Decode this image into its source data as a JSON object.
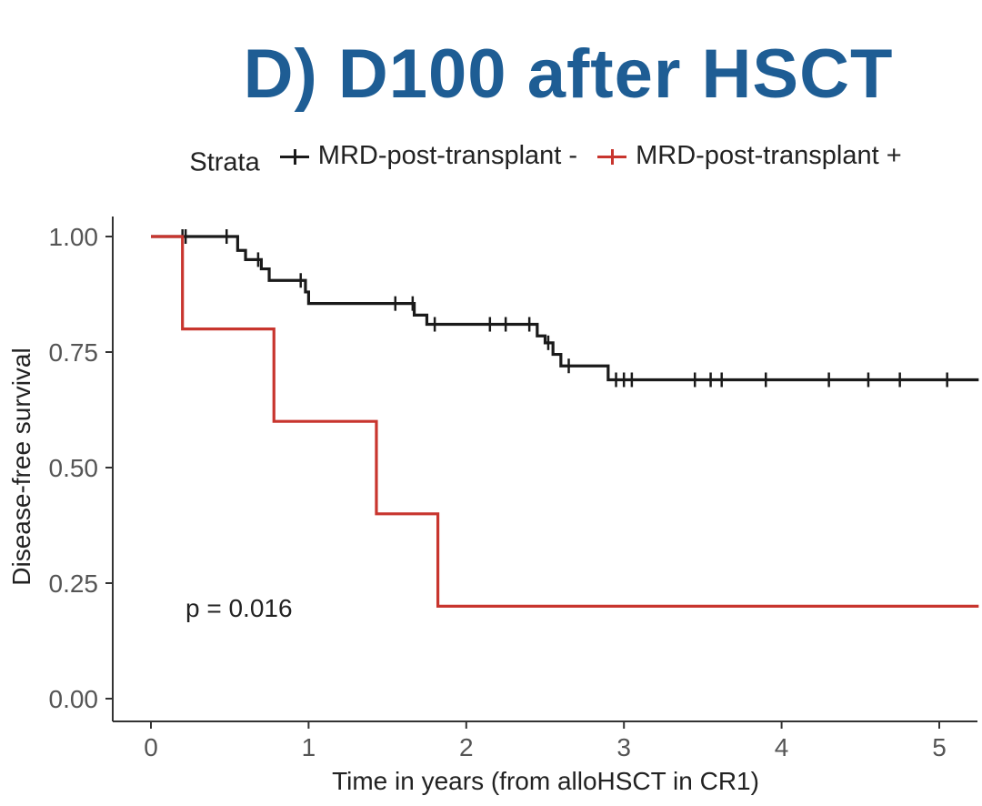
{
  "chart_data": {
    "type": "line",
    "subtype": "kaplan-meier",
    "title": "D) D100 after HSCT",
    "legend": {
      "title": "Strata",
      "placement": "top"
    },
    "xlabel": "Time in years (from alloHSCT in CR1)",
    "ylabel": "Disease-free survival",
    "xlim": [
      0,
      5.25
    ],
    "ylim": [
      0,
      1
    ],
    "xticks": [
      0,
      1,
      2,
      3,
      4,
      5
    ],
    "xtick_labels": [
      "0",
      "1",
      "2",
      "3",
      "4",
      "5"
    ],
    "yticks": [
      0,
      0.25,
      0.5,
      0.75,
      1
    ],
    "ytick_labels": [
      "0.00",
      "0.25",
      "0.50",
      "0.75",
      "1.00"
    ],
    "grid": false,
    "annotation": "p = 0.016",
    "series": [
      {
        "name": "MRD-post-transplant -",
        "color": "#1a1a1a",
        "steps": [
          [
            0,
            1.0
          ],
          [
            0.55,
            0.97
          ],
          [
            0.6,
            0.95
          ],
          [
            0.7,
            0.93
          ],
          [
            0.75,
            0.905
          ],
          [
            0.98,
            0.88
          ],
          [
            1.0,
            0.855
          ],
          [
            1.67,
            0.83
          ],
          [
            1.75,
            0.81
          ],
          [
            2.45,
            0.785
          ],
          [
            2.5,
            0.77
          ],
          [
            2.55,
            0.745
          ],
          [
            2.6,
            0.72
          ],
          [
            2.9,
            0.69
          ],
          [
            5.25,
            0.69
          ]
        ],
        "censors": [
          0.2,
          0.22,
          0.48,
          0.68,
          0.95,
          1.55,
          1.66,
          1.8,
          2.15,
          2.25,
          2.4,
          2.52,
          2.65,
          2.95,
          3.0,
          3.05,
          3.45,
          3.55,
          3.62,
          3.9,
          4.3,
          4.55,
          4.75,
          5.05
        ]
      },
      {
        "name": "MRD-post-transplant +",
        "color": "#c8352e",
        "steps": [
          [
            0,
            1.0
          ],
          [
            0.2,
            0.8
          ],
          [
            0.78,
            0.6
          ],
          [
            1.43,
            0.4
          ],
          [
            1.82,
            0.2
          ],
          [
            5.25,
            0.2
          ]
        ],
        "censors": []
      }
    ]
  }
}
